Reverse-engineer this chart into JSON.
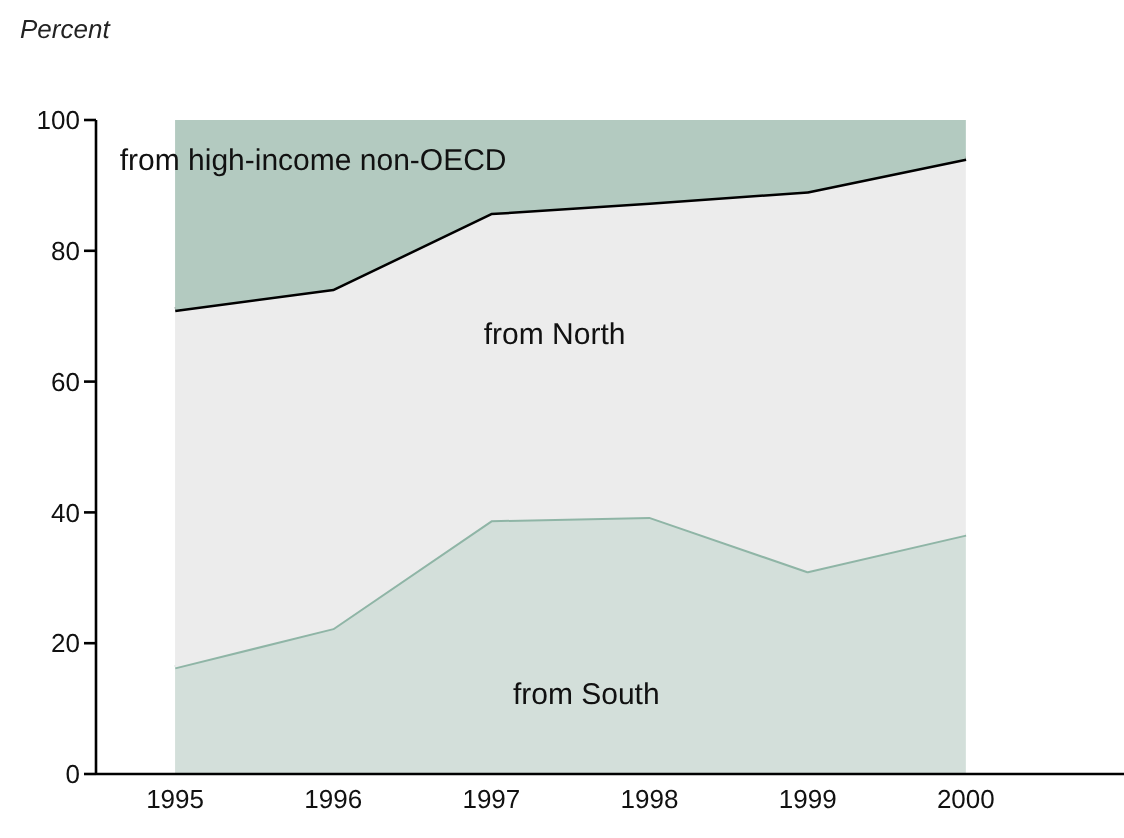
{
  "chart_data": {
    "type": "area",
    "stacked": true,
    "ylabel": "Percent",
    "categories": [
      "1995",
      "1996",
      "1997",
      "1998",
      "1999",
      "2000"
    ],
    "series": [
      {
        "name": "from South",
        "color": "#d3dfda",
        "values": [
          16.3,
          22.3,
          38.8,
          39.3,
          31.0,
          36.6
        ]
      },
      {
        "name": "from North",
        "color": "#ececec",
        "values": [
          54.7,
          51.9,
          47.0,
          48.1,
          58.1,
          57.5
        ]
      },
      {
        "name": "from high-income non-OECD",
        "color": "#b3cac0",
        "values": [
          29.0,
          25.8,
          14.2,
          12.6,
          10.9,
          5.9
        ]
      }
    ],
    "ylim": [
      0,
      100
    ],
    "yticks": [
      0,
      20,
      40,
      60,
      80,
      100
    ],
    "grid": false,
    "legend": false
  }
}
